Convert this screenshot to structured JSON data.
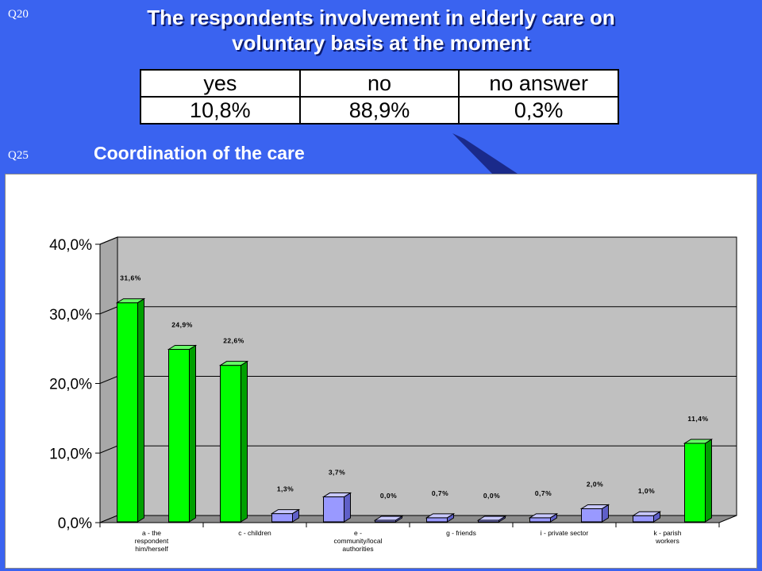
{
  "slide": {
    "q20_label": "Q20",
    "q25_label": "Q25",
    "title_line1": "The respondents involvement in elderly care on",
    "title_line2": "voluntary basis at the moment",
    "subtitle": "Coordination of the care"
  },
  "table": {
    "headers": [
      "yes",
      "no",
      "no answer"
    ],
    "values": [
      "10,8%",
      "88,9%",
      "0,3%"
    ]
  },
  "colors": {
    "background": "#3a63f0",
    "bar_green": "#00ff00",
    "bar_lavender": "#9999ff",
    "plot_wall": "#c0c0c0"
  },
  "chart_data": {
    "type": "bar",
    "title": "",
    "xlabel": "",
    "ylabel": "",
    "ylim": [
      0,
      40
    ],
    "y_ticks": [
      "0,0%",
      "10,0%",
      "20,0%",
      "30,0%",
      "40,0%"
    ],
    "grid": true,
    "bars": [
      {
        "value": 31.6,
        "label": "31,6%",
        "color": "green"
      },
      {
        "value": 24.9,
        "label": "24,9%",
        "color": "green"
      },
      {
        "value": 22.6,
        "label": "22,6%",
        "color": "green"
      },
      {
        "value": 1.3,
        "label": "1,3%",
        "color": "lavender"
      },
      {
        "value": 3.7,
        "label": "3,7%",
        "color": "lavender"
      },
      {
        "value": 0.0,
        "label": "0,0%",
        "color": "lavender"
      },
      {
        "value": 0.7,
        "label": "0,7%",
        "color": "lavender"
      },
      {
        "value": 0.0,
        "label": "0,0%",
        "color": "lavender"
      },
      {
        "value": 0.7,
        "label": "0,7%",
        "color": "lavender"
      },
      {
        "value": 2.0,
        "label": "2,0%",
        "color": "lavender"
      },
      {
        "value": 1.0,
        "label": "1,0%",
        "color": "lavender"
      },
      {
        "value": 11.4,
        "label": "11,4%",
        "color": "green"
      }
    ],
    "category_labels": [
      {
        "index": 0,
        "lines": [
          "a - the",
          "respondent",
          "him/herself"
        ]
      },
      {
        "index": 2,
        "lines": [
          "c - children"
        ]
      },
      {
        "index": 4,
        "lines": [
          "e -",
          "community/local",
          "authorities"
        ]
      },
      {
        "index": 6,
        "lines": [
          "g - friends"
        ]
      },
      {
        "index": 8,
        "lines": [
          "i - private sector"
        ]
      },
      {
        "index": 10,
        "lines": [
          "k - parish",
          "workers"
        ]
      }
    ]
  }
}
